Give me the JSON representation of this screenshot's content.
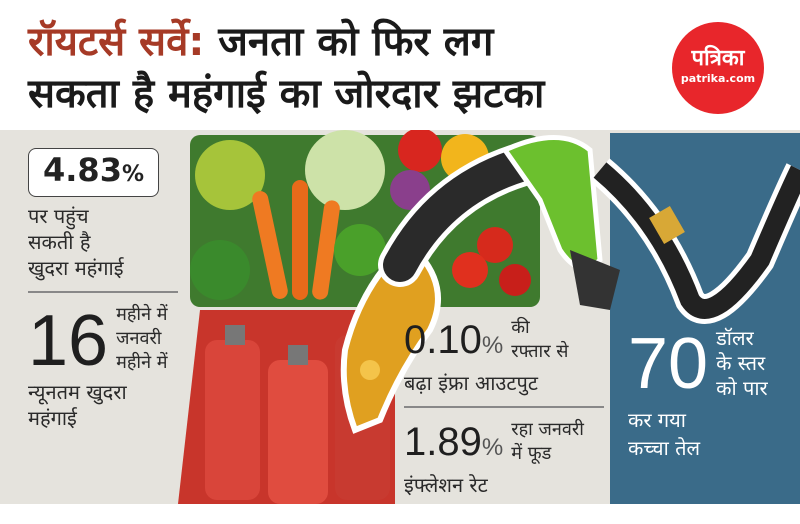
{
  "headline": {
    "accent": "रॉयटर्स सर्वे:",
    "line1_rest": " जनता को फिर लग",
    "line2": "सकता है महंगाई का जोरदार झटका"
  },
  "logo": {
    "name": "पत्रिका",
    "site": "patrika.com",
    "color": "#e8262b"
  },
  "stats": {
    "retail": {
      "value": "4.83",
      "unit": "%",
      "text": [
        "पर पहुंच",
        "सकती है",
        "खुदरा महंगाई"
      ]
    },
    "months": {
      "value": "16",
      "side_text": [
        "महीने में",
        "जनवरी",
        "महीने में"
      ],
      "text": [
        "न्यूनतम खुदरा",
        "महंगाई"
      ]
    },
    "infra": {
      "value": "0.10",
      "unit": "%",
      "side_text": [
        "की",
        "रफ्तार से"
      ],
      "text": "बढ़ा इंफ्रा आउटपुट"
    },
    "food": {
      "value": "1.89",
      "unit": "%",
      "side_text": [
        "रहा जनवरी",
        "में फूड"
      ],
      "text": "इंफ्लेशन रेट"
    },
    "crude": {
      "value": "70",
      "side_text": [
        "डॉलर",
        "के स्तर",
        "को पार"
      ],
      "text": [
        "कर गया",
        "कच्चा तेल"
      ]
    }
  },
  "colors": {
    "accent": "#a63a26",
    "panel": "#e5e3dd",
    "blue_panel": "#3a6b89",
    "nozzle": "#6cc02e"
  },
  "illustrations": [
    "vegetables",
    "lpg-cylinders",
    "fuel-nozzle",
    "fuel-splash"
  ]
}
